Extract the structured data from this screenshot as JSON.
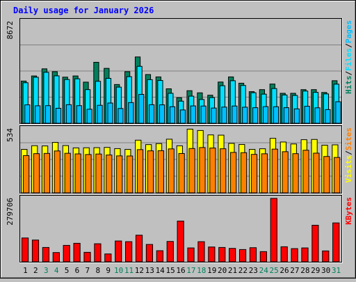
{
  "colors": {
    "background": "#c0c0c0",
    "plot_background": "#c0c0c0",
    "grid": "#808080",
    "title": "#0000ff",
    "hits": "#00805c",
    "files": "#00e0ff",
    "pages": "#00c0ff",
    "visits": "#ffff00",
    "sites": "#ff8000",
    "kbytes": "#ff0000",
    "weekend_label": "#00805c",
    "weekday_label": "#000000",
    "separator_label": "#000000"
  },
  "chart_data": [
    {
      "type": "bar",
      "title": "Daily usage for January 2026",
      "categories": [
        "1",
        "2",
        "3",
        "4",
        "5",
        "6",
        "7",
        "8",
        "9",
        "10",
        "11",
        "12",
        "13",
        "14",
        "15",
        "16",
        "17",
        "18",
        "19",
        "20",
        "21",
        "22",
        "23",
        "24",
        "25",
        "26",
        "27",
        "28",
        "29",
        "30",
        "31"
      ],
      "weekend_days": [
        "3",
        "4",
        "10",
        "11",
        "17",
        "18",
        "24",
        "25",
        "31"
      ],
      "ymax_label": "8672",
      "ylim": [
        0,
        8672
      ],
      "grid": true,
      "side_legend": [
        "Hits",
        "/",
        "Files",
        "/",
        "Pages"
      ],
      "series": [
        {
          "name": "Hits",
          "values": [
            3550,
            3980,
            4580,
            4340,
            3880,
            3980,
            3460,
            5130,
            4620,
            3260,
            4340,
            5580,
            4100,
            3900,
            2900,
            2150,
            2740,
            2560,
            2360,
            3470,
            3900,
            3370,
            2660,
            2830,
            3300,
            2520,
            2520,
            2830,
            2830,
            2590,
            3580
          ]
        },
        {
          "name": "Files",
          "values": [
            3410,
            3870,
            4290,
            3990,
            3680,
            3740,
            2830,
            3530,
            3780,
            3040,
            3920,
            4790,
            3670,
            3600,
            2520,
            1860,
            2280,
            2000,
            2160,
            3160,
            3580,
            3180,
            2570,
            2450,
            2920,
            2380,
            2340,
            2710,
            2600,
            2470,
            3290
          ]
        },
        {
          "name": "Pages",
          "values": [
            1550,
            1470,
            1480,
            1260,
            1560,
            1480,
            1180,
            1510,
            1700,
            1240,
            1740,
            2430,
            1560,
            1550,
            1390,
            1120,
            1460,
            1450,
            1280,
            1360,
            1450,
            1350,
            1310,
            1400,
            1390,
            1310,
            1210,
            1430,
            1300,
            1150,
            1810
          ]
        }
      ]
    },
    {
      "type": "bar",
      "categories": [
        "1",
        "2",
        "3",
        "4",
        "5",
        "6",
        "7",
        "8",
        "9",
        "10",
        "11",
        "12",
        "13",
        "14",
        "15",
        "16",
        "17",
        "18",
        "19",
        "20",
        "21",
        "22",
        "23",
        "24",
        "25",
        "26",
        "27",
        "28",
        "29",
        "30",
        "31"
      ],
      "ymax_label": "534",
      "ylim": [
        0,
        534
      ],
      "grid": true,
      "side_legend": [
        "Visits",
        "/",
        "Sites"
      ],
      "series": [
        {
          "name": "Visits",
          "values": [
            355,
            385,
            383,
            412,
            386,
            367,
            368,
            369,
            371,
            361,
            355,
            430,
            394,
            402,
            438,
            384,
            520,
            509,
            473,
            471,
            404,
            395,
            355,
            360,
            445,
            415,
            399,
            434,
            436,
            389,
            392
          ]
        },
        {
          "name": "Sites",
          "values": [
            304,
            320,
            322,
            342,
            323,
            318,
            313,
            317,
            309,
            302,
            301,
            353,
            343,
            344,
            359,
            321,
            362,
            370,
            366,
            360,
            330,
            328,
            314,
            319,
            357,
            336,
            320,
            348,
            324,
            297,
            289
          ]
        }
      ]
    },
    {
      "type": "bar",
      "categories": [
        "1",
        "2",
        "3",
        "4",
        "5",
        "6",
        "7",
        "8",
        "9",
        "10",
        "11",
        "12",
        "13",
        "14",
        "15",
        "16",
        "17",
        "18",
        "19",
        "20",
        "21",
        "22",
        "23",
        "24",
        "25",
        "26",
        "27",
        "28",
        "29",
        "30",
        "31"
      ],
      "ymax_label": "279706",
      "ylim": [
        0,
        279706
      ],
      "grid": false,
      "side_legend": [
        "KBytes"
      ],
      "series": [
        {
          "name": "KBytes",
          "values": [
            103000,
            94000,
            62000,
            40000,
            71000,
            80000,
            41000,
            78000,
            34000,
            90000,
            87000,
            115000,
            75000,
            48000,
            88000,
            176000,
            60000,
            87000,
            64000,
            62000,
            58000,
            53000,
            61000,
            44000,
            274000,
            65000,
            57000,
            60000,
            158000,
            47000,
            168000
          ]
        }
      ]
    }
  ]
}
